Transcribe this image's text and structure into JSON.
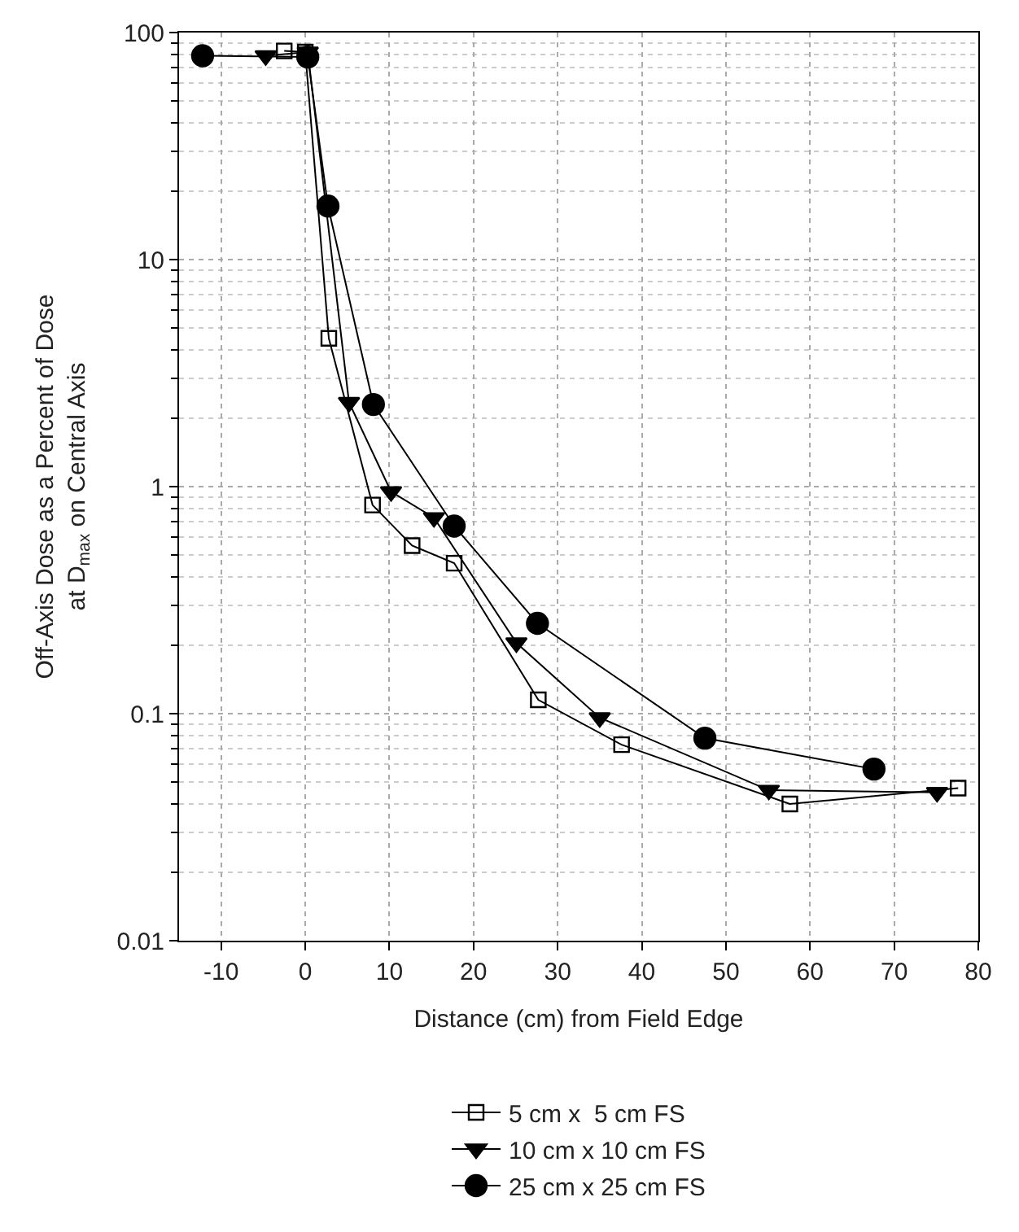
{
  "chart_data": {
    "type": "line",
    "xlabel": "Distance (cm) from Field Edge",
    "ylabel": "Off-Axis Dose as a Percent of Dose\nat D$_{max}$ on Central Axis",
    "log": "y",
    "xlim": [
      -15,
      80
    ],
    "xticks": [
      -10,
      0,
      10,
      20,
      30,
      40,
      50,
      60,
      70,
      80
    ],
    "ylim": [
      0.01,
      100
    ],
    "yticks": [
      0.01,
      0.1,
      1,
      10,
      100
    ],
    "grid": true,
    "legend": "bottom",
    "line_style": "solid",
    "series": [
      {
        "name": "5 cm x  5 cm FS",
        "color": "#000000",
        "marker": "square-open",
        "x": [
          -2.5,
          0,
          2.8,
          8,
          12.7,
          17.7,
          27.7,
          37.6,
          57.6,
          77.6
        ],
        "values": [
          83,
          82,
          4.5,
          0.83,
          0.55,
          0.46,
          0.115,
          0.073,
          0.04,
          0.047
        ]
      },
      {
        "name": "10 cm x 10 cm FS",
        "color": "#000000",
        "marker": "triangle-down",
        "x": [
          -4.7,
          0.3,
          5.2,
          10.2,
          15.3,
          25.1,
          35,
          55.1,
          75.1
        ],
        "values": [
          79,
          82,
          2.35,
          0.95,
          0.73,
          0.205,
          0.096,
          0.046,
          0.045
        ]
      },
      {
        "name": "25 cm x 25 cm FS",
        "color": "#000000",
        "marker": "circle",
        "x": [
          -12.2,
          0.3,
          2.7,
          8.1,
          17.7,
          27.6,
          47.5,
          67.6
        ],
        "values": [
          79,
          78,
          17.2,
          2.3,
          0.67,
          0.25,
          0.078,
          0.057
        ]
      }
    ]
  }
}
